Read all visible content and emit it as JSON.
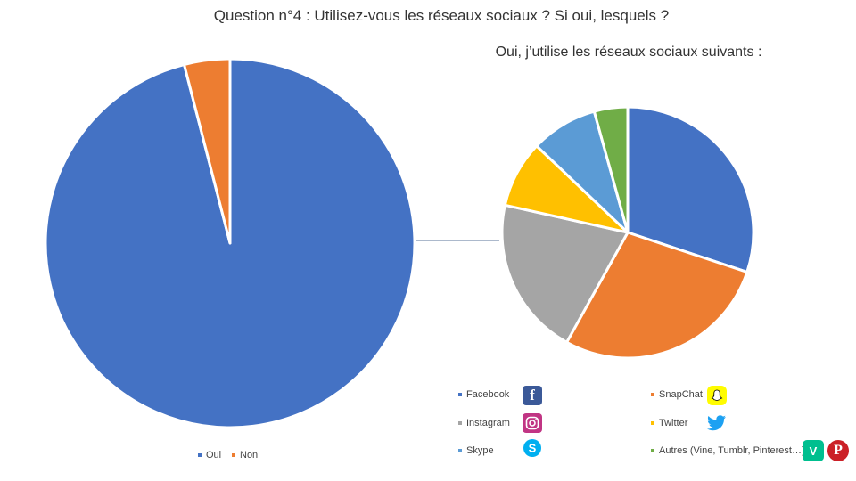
{
  "title": "Question n°4 : Utilisez-vous les réseaux sociaux ? Si oui, lesquels ?",
  "subtitle": "Oui, j’utilise les réseaux sociaux suivants :",
  "colors": {
    "blue": "#4472c4",
    "orange": "#ed7d31",
    "gray": "#a5a5a5",
    "yellow": "#ffc000",
    "light_blue": "#5b9bd5",
    "green": "#70ad47"
  },
  "chart_data": [
    {
      "type": "pie",
      "categories": [
        "Oui",
        "Non"
      ],
      "values": [
        96,
        4
      ],
      "colors": [
        "#4472c4",
        "#ed7d31"
      ],
      "legend": "bottom"
    },
    {
      "type": "pie",
      "title": "Oui, j’utilise les réseaux sociaux suivants :",
      "categories": [
        "Facebook",
        "SnapChat",
        "Instagram",
        "Twitter",
        "Skype",
        "Autres (Vine, Tumblr, Pinterest...)"
      ],
      "values": [
        28,
        26,
        19,
        8,
        8,
        4
      ],
      "colors": [
        "#4472c4",
        "#ed7d31",
        "#a5a5a5",
        "#ffc000",
        "#5b9bd5",
        "#70ad47"
      ],
      "legend": "bottom"
    }
  ],
  "legend_left": [
    {
      "label": "Oui",
      "color": "#4472c4"
    },
    {
      "label": "Non",
      "color": "#ed7d31"
    }
  ],
  "legend_right": [
    {
      "label": "Facebook",
      "color": "#4472c4",
      "icon": "facebook-icon"
    },
    {
      "label": "SnapChat",
      "color": "#ed7d31",
      "icon": "snapchat-icon"
    },
    {
      "label": "Instagram",
      "color": "#a5a5a5",
      "icon": "instagram-icon"
    },
    {
      "label": "Twitter",
      "color": "#ffc000",
      "icon": "twitter-icon"
    },
    {
      "label": "Skype",
      "color": "#5b9bd5",
      "icon": "skype-icon"
    },
    {
      "label": "Autres (Vine, Tumblr, Pinterest…)",
      "color": "#70ad47",
      "icon": "vine-icon"
    }
  ]
}
